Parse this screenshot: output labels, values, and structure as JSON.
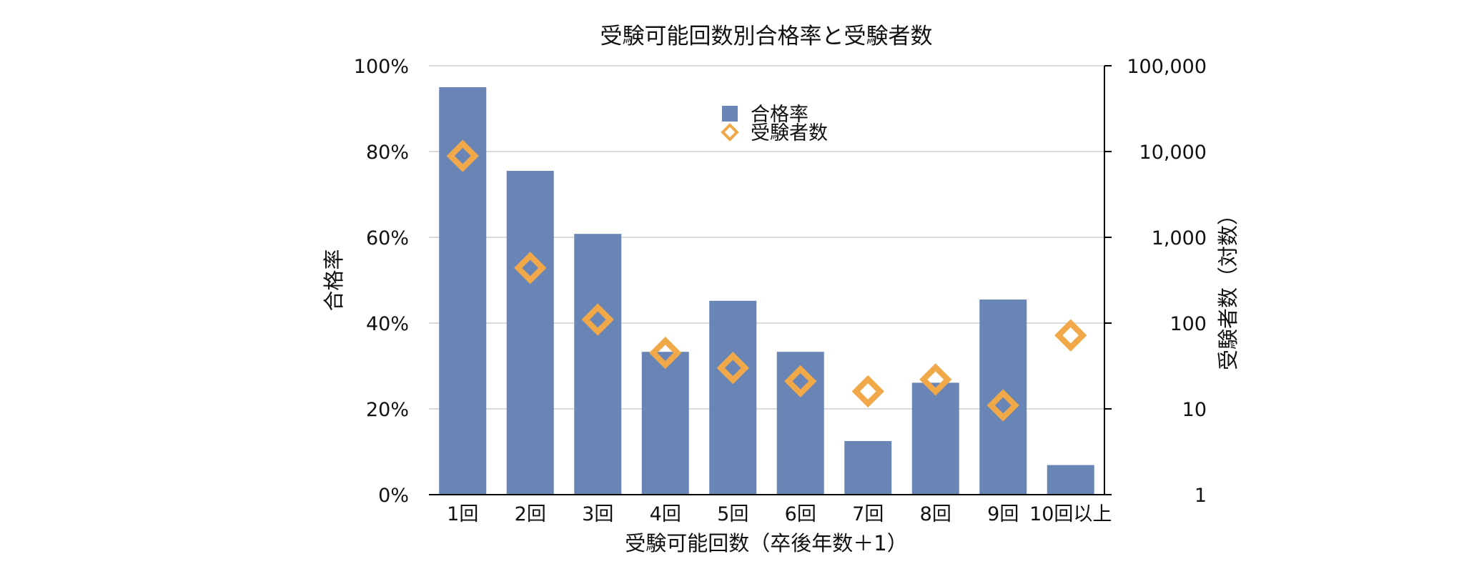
{
  "chart_data": {
    "type": "bar",
    "title": "受験可能回数別合格率と受験者数",
    "xlabel": "受験可能回数（卒後年数＋1）",
    "ylabel": "合格率",
    "y2label": "受験者数（対数）",
    "categories": [
      "1回",
      "2回",
      "3回",
      "4回",
      "5回",
      "6回",
      "7回",
      "8回",
      "9回",
      "10回以上"
    ],
    "series": [
      {
        "name": "合格率",
        "kind": "bar",
        "axis": "left",
        "color": "#6885b5",
        "values": [
          95,
          75.5,
          60.8,
          33.3,
          45.2,
          33.3,
          12.5,
          26.1,
          45.5,
          6.9
        ]
      },
      {
        "name": "受験者数",
        "kind": "marker-diamond",
        "axis": "right",
        "scale": "log",
        "color": "#f0a848",
        "values": [
          8900,
          440,
          110,
          45,
          30,
          21,
          16,
          22,
          11,
          72
        ]
      }
    ],
    "ylim": [
      0,
      100
    ],
    "yticks": [
      "0%",
      "20%",
      "40%",
      "60%",
      "80%",
      "100%"
    ],
    "y2lim": [
      1,
      100000
    ],
    "y2ticks": [
      "1",
      "10",
      "100",
      "1,000",
      "10,000",
      "100,000"
    ],
    "grid": true,
    "legend_position": "top-center"
  }
}
